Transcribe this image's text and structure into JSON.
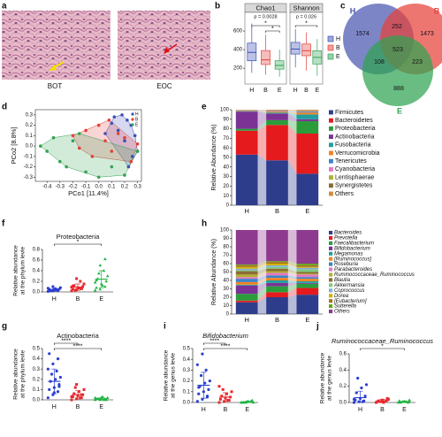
{
  "panel_labels": [
    "a",
    "b",
    "c",
    "d",
    "e",
    "f",
    "g",
    "h",
    "i",
    "j"
  ],
  "images": [
    {
      "caption": "BOT"
    },
    {
      "caption": "EOC"
    }
  ],
  "chart_data": [
    {
      "type": "box",
      "title": "Chao1",
      "categories": [
        "H",
        "B",
        "E"
      ],
      "colors": [
        "#3f4fb5",
        "#e2413b",
        "#32a352"
      ],
      "boxes": [
        {
          "min": 150,
          "q1": 280,
          "median": 370,
          "q3": 470,
          "max": 680
        },
        {
          "min": 130,
          "q1": 240,
          "median": 290,
          "q3": 390,
          "max": 560
        },
        {
          "min": 110,
          "q1": 190,
          "median": 230,
          "q3": 280,
          "max": 400
        }
      ],
      "ylim": [
        30,
        800
      ],
      "yticks": [
        200,
        400,
        600
      ],
      "annotations": [
        "p = 0.0028",
        "*",
        "*"
      ]
    },
    {
      "type": "box",
      "title": "Shannon",
      "categories": [
        "H",
        "B",
        "E"
      ],
      "colors": [
        "#3f4fb5",
        "#e2413b",
        "#32a352"
      ],
      "boxes": [
        {
          "min": 3.5,
          "q1": 4.3,
          "median": 4.6,
          "q3": 5.0,
          "max": 5.8
        },
        {
          "min": 3.3,
          "q1": 4.2,
          "median": 4.5,
          "q3": 4.9,
          "max": 5.6
        },
        {
          "min": 3.0,
          "q1": 3.7,
          "median": 4.1,
          "q3": 4.5,
          "max": 5.2
        }
      ],
      "ylim": [
        2.5,
        6.8
      ],
      "annotations": [
        "p = 0.026",
        "*"
      ],
      "legend": true
    },
    {
      "type": "venn",
      "sets": [
        {
          "name": "H",
          "color": "#4a56b0"
        },
        {
          "name": "B",
          "color": "#e8413a"
        },
        {
          "name": "E",
          "color": "#2fa352"
        }
      ],
      "regions": [
        1574,
        1473,
        888,
        252,
        108,
        223,
        523
      ]
    },
    {
      "type": "scatter",
      "xlabel": "PCo1 [11.4%]",
      "ylabel": "PCo2 [8.8%]",
      "legend": "upper right",
      "xlim": [
        -0.49,
        0.33
      ],
      "ylim": [
        -0.34,
        0.35
      ],
      "xticks": [
        -0.4,
        -0.3,
        -0.2,
        -0.1,
        {
          "value": 0,
          "label": "0.0"
        },
        0.1,
        0.2,
        0.3
      ],
      "yticks": [
        -0.3,
        -0.2,
        -0.1,
        {
          "value": 0,
          "label": "0.0"
        },
        0.1,
        0.2,
        0.3
      ],
      "series": [
        {
          "name": "H",
          "color": "#3f4fb5",
          "x": [
            0.12,
            0.18,
            0.22,
            0.25,
            0.28,
            0.3,
            0.15,
            0.2,
            0.26,
            0.1,
            0.05,
            0.23
          ],
          "y": [
            0.28,
            0.3,
            0.25,
            0.2,
            0.1,
            -0.05,
            0.15,
            0.05,
            -0.1,
            0.22,
            0.12,
            -0.2
          ]
        },
        {
          "name": "B",
          "color": "#e2413b",
          "x": [
            -0.2,
            -0.1,
            0.0,
            0.05,
            0.1,
            0.15,
            0.2,
            0.25,
            -0.05,
            0.3,
            0.08,
            -0.15
          ],
          "y": [
            0.1,
            0.15,
            0.2,
            0.05,
            -0.05,
            0.12,
            0.08,
            -0.15,
            -0.1,
            0.02,
            0.25,
            -0.02
          ]
        },
        {
          "name": "E",
          "color": "#32a352",
          "x": [
            -0.45,
            -0.4,
            -0.35,
            -0.3,
            -0.25,
            -0.2,
            -0.1,
            0.0,
            0.1,
            0.2,
            0.3,
            -0.15
          ],
          "y": [
            0.0,
            -0.05,
            0.08,
            -0.15,
            -0.2,
            0.05,
            -0.25,
            -0.3,
            -0.2,
            -0.28,
            -0.05,
            0.12
          ]
        }
      ]
    },
    {
      "type": "stacked_bar",
      "ylabel": "Relative Abundance (%)",
      "categories": [
        "H",
        "B",
        "E"
      ],
      "ylim": [
        0,
        100
      ],
      "yticks": [
        0,
        10,
        20,
        30,
        40,
        50,
        60,
        70,
        80,
        90,
        100
      ],
      "legend_style": "normal",
      "series": [
        {
          "name": "Firmicutes",
          "color": "#2e3c8c",
          "values": [
            53,
            47,
            33
          ]
        },
        {
          "name": "Bacteroidetes",
          "color": "#e41a1c",
          "values": [
            25,
            37,
            42
          ]
        },
        {
          "name": "Proteobacteria",
          "color": "#2a9d3a",
          "values": [
            2,
            5,
            13
          ]
        },
        {
          "name": "Actinobacteria",
          "color": "#7b3294",
          "values": [
            18,
            7,
            2
          ]
        },
        {
          "name": "Fusobacteria",
          "color": "#1f9ea0",
          "values": [
            0.5,
            1,
            5
          ]
        },
        {
          "name": "Verrucomicrobia",
          "color": "#f58220",
          "values": [
            0.5,
            1,
            2
          ]
        },
        {
          "name": "Tenericutes",
          "color": "#3c84c4",
          "values": [
            0.3,
            0.5,
            1
          ]
        },
        {
          "name": "Cyanobacteria",
          "color": "#e377c2",
          "values": [
            0.2,
            0.5,
            0.5
          ]
        },
        {
          "name": "Lentisphaerae",
          "color": "#b0b030",
          "values": [
            0.2,
            0.3,
            0.5
          ]
        },
        {
          "name": "Synergistetes",
          "color": "#8c6d31",
          "values": [
            0.1,
            0.2,
            0.3
          ]
        },
        {
          "name": "Others",
          "color": "#d08c3c",
          "values": [
            0.2,
            0.5,
            0.7
          ]
        }
      ]
    },
    {
      "type": "dot",
      "title": "Proteobacteria",
      "title_style": "normal",
      "ylabel": [
        "Relative abundance",
        "at the phylum levle"
      ],
      "ylim": [
        0,
        0.8
      ],
      "yticks": [
        {
          "value": 0,
          "label": "0.0"
        },
        0.2,
        0.4,
        0.6,
        0.8
      ],
      "annotations": [
        "*"
      ],
      "series": [
        {
          "name": "H",
          "color": "#2b3fd0",
          "values": [
            0.01,
            0.02,
            0.03,
            0.02,
            0.04,
            0.05,
            0.03,
            0.06,
            0.08,
            0.02,
            0.04,
            0.07,
            0.1,
            0.03,
            0.05
          ],
          "mean": 0.04,
          "sd": 0.025
        },
        {
          "name": "B",
          "color": "#e8282e",
          "values": [
            0.02,
            0.04,
            0.06,
            0.05,
            0.08,
            0.1,
            0.12,
            0.07,
            0.15,
            0.03,
            0.2,
            0.09,
            0.25,
            0.06,
            0.11
          ],
          "mean": 0.09,
          "sd": 0.06
        },
        {
          "name": "E",
          "color": "#1db540",
          "values": [
            0.03,
            0.05,
            0.1,
            0.08,
            0.15,
            0.2,
            0.25,
            0.12,
            0.3,
            0.35,
            0.4,
            0.18,
            0.5,
            0.62,
            0.22
          ],
          "mean": 0.24,
          "sd": 0.16
        }
      ]
    },
    {
      "type": "stacked_bar",
      "ylabel": "Relative Abundance (%)",
      "categories": [
        "H",
        "B",
        "E"
      ],
      "ylim": [
        0,
        100
      ],
      "yticks": [
        0,
        10,
        20,
        30,
        40,
        50,
        60,
        70,
        80,
        90,
        100
      ],
      "legend_style": "italic",
      "series": [
        {
          "name": "Bacteroides",
          "color": "#2e3c8c",
          "values": [
            14,
            20,
            23
          ]
        },
        {
          "name": "Prevotella",
          "color": "#e41a1c",
          "values": [
            2,
            6,
            8
          ]
        },
        {
          "name": "Faecalibacterium",
          "color": "#2a9d3a",
          "values": [
            8,
            7,
            5
          ]
        },
        {
          "name": "Bifidobacterium",
          "color": "#7b3294",
          "values": [
            10,
            4,
            1
          ]
        },
        {
          "name": "Megamonas",
          "color": "#1f9ea0",
          "values": [
            1,
            3,
            2
          ]
        },
        {
          "name": "[Ruminococcus]",
          "color": "#f58220",
          "values": [
            3,
            3,
            3
          ]
        },
        {
          "name": "Roseburia",
          "color": "#3c84c4",
          "values": [
            4,
            3,
            2
          ]
        },
        {
          "name": "Parabacteroides",
          "color": "#e377c2",
          "values": [
            2,
            3,
            3
          ]
        },
        {
          "name": "Ruminococcaceae_Ruminococcus",
          "color": "#b0b030",
          "values": [
            3,
            2,
            1
          ]
        },
        {
          "name": "Blautia",
          "color": "#8c6d31",
          "values": [
            4,
            3,
            2
          ]
        },
        {
          "name": "Akkermansia",
          "color": "#7fc97f",
          "values": [
            1,
            2,
            3
          ]
        },
        {
          "name": "Coprococcus",
          "color": "#80b1d3",
          "values": [
            2,
            2,
            2
          ]
        },
        {
          "name": "Dorea",
          "color": "#d4b000",
          "values": [
            2,
            2,
            1
          ]
        },
        {
          "name": "[Eubacterium]",
          "color": "#a6761d",
          "values": [
            2,
            2,
            2
          ]
        },
        {
          "name": "Sutterella",
          "color": "#66a61e",
          "values": [
            1,
            1,
            2
          ]
        },
        {
          "name": "Others",
          "color": "#8e3a8e",
          "values": [
            41,
            37,
            40
          ]
        }
      ]
    },
    {
      "type": "dot",
      "title": "Actinobacteria",
      "title_style": "normal",
      "ylabel": [
        "Relative abundance",
        "at the phylum levle"
      ],
      "ylim": [
        0,
        0.5
      ],
      "yticks": [
        {
          "value": 0,
          "label": "0.0"
        },
        0.1,
        0.2,
        0.3,
        0.4,
        0.5
      ],
      "annotations": [
        "****",
        "****"
      ],
      "series": [
        {
          "name": "H",
          "color": "#2b3fd0",
          "values": [
            0.02,
            0.05,
            0.08,
            0.1,
            0.12,
            0.15,
            0.18,
            0.2,
            0.22,
            0.25,
            0.28,
            0.3,
            0.35,
            0.4,
            0.45,
            0.07,
            0.13
          ],
          "mean": 0.18,
          "sd": 0.12
        },
        {
          "name": "B",
          "color": "#e8282e",
          "values": [
            0.0,
            0.01,
            0.02,
            0.03,
            0.04,
            0.05,
            0.06,
            0.08,
            0.1,
            0.12,
            0.02,
            0.03,
            0.15,
            0.05
          ],
          "mean": 0.05,
          "sd": 0.04
        },
        {
          "name": "E",
          "color": "#1db540",
          "values": [
            0.0,
            0.0,
            0.01,
            0.01,
            0.02,
            0.0,
            0.01,
            0.03,
            0.02,
            0.01,
            0.0,
            0.02
          ],
          "mean": 0.01,
          "sd": 0.01
        }
      ]
    },
    {
      "type": "dot",
      "title": "Bifidobacterium",
      "title_style": "italic",
      "ylabel": [
        "Relative abundance",
        "at the genus levle"
      ],
      "ylim": [
        0,
        0.5
      ],
      "yticks": [
        {
          "value": 0,
          "label": "0.0"
        },
        0.1,
        0.2,
        0.3,
        0.4,
        0.5
      ],
      "annotations": [
        "****",
        "****"
      ],
      "series": [
        {
          "name": "H",
          "color": "#2b3fd0",
          "values": [
            0.01,
            0.03,
            0.05,
            0.08,
            0.1,
            0.12,
            0.15,
            0.18,
            0.2,
            0.25,
            0.3,
            0.35,
            0.45,
            0.06,
            0.14
          ],
          "mean": 0.16,
          "sd": 0.12
        },
        {
          "name": "B",
          "color": "#e8282e",
          "values": [
            0.0,
            0.01,
            0.02,
            0.03,
            0.04,
            0.05,
            0.06,
            0.08,
            0.1,
            0.12,
            0.02,
            0.15
          ],
          "mean": 0.05,
          "sd": 0.04
        },
        {
          "name": "E",
          "color": "#1db540",
          "values": [
            0.0,
            0.0,
            0.01,
            0.0,
            0.01,
            0.02,
            0.0,
            0.01,
            0.0
          ],
          "mean": 0.005,
          "sd": 0.006
        }
      ]
    },
    {
      "type": "dot",
      "title": "Ruminococcaceae_Ruminococcus",
      "title_style": "italic",
      "ylabel": [
        "Relative abundance",
        "at the genus levle"
      ],
      "ylim": [
        0,
        0.6
      ],
      "yticks": [
        {
          "value": 0,
          "label": "0.0"
        },
        0.2,
        0.4,
        0.6
      ],
      "annotations": [
        "*"
      ],
      "series": [
        {
          "name": "H",
          "color": "#2b3fd0",
          "values": [
            0.0,
            0.01,
            0.02,
            0.03,
            0.05,
            0.08,
            0.12,
            0.18,
            0.22,
            0.3,
            0.01,
            0.04
          ],
          "mean": 0.06,
          "sd": 0.08
        },
        {
          "name": "B",
          "color": "#e8282e",
          "values": [
            0.0,
            0.01,
            0.02,
            0.01,
            0.03,
            0.05,
            0.02,
            0.0,
            0.04
          ],
          "mean": 0.02,
          "sd": 0.017
        },
        {
          "name": "E",
          "color": "#1db540",
          "values": [
            0.0,
            0.01,
            0.0,
            0.02,
            0.01,
            0.03,
            0.0,
            0.01
          ],
          "mean": 0.01,
          "sd": 0.01
        }
      ]
    }
  ]
}
